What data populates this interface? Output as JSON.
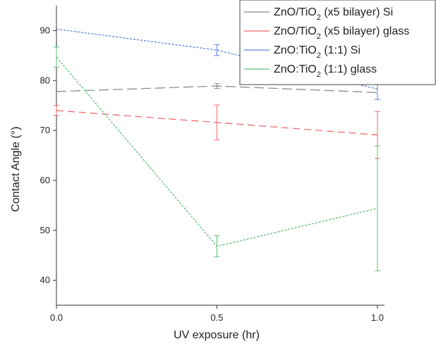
{
  "chart_data": {
    "type": "line",
    "title": "",
    "xlabel": "UV exposure (hr)",
    "ylabel": "Contact Angle (°)",
    "xlim": [
      0.0,
      1.0
    ],
    "ylim": [
      35,
      95
    ],
    "x_ticks": [
      "0.0",
      "0.5",
      "1.0"
    ],
    "y_ticks": [
      "40",
      "50",
      "60",
      "70",
      "80",
      "90"
    ],
    "x_tick_values": [
      0.0,
      0.5,
      1.0
    ],
    "y_tick_values": [
      40,
      50,
      60,
      70,
      80,
      90
    ],
    "grid": false,
    "legend_position": "top-right",
    "x": [
      0.0,
      0.5,
      1.0
    ],
    "series": [
      {
        "name": "ZnO/TiO2 (x5 bilayer) Si",
        "legend_base": "ZnO/TiO",
        "legend_sub": "2",
        "legend_rest": " (x5 bilayer) Si",
        "color": "#8c8c8c",
        "dash": "14,6",
        "values": [
          77.8,
          78.9,
          77.6
        ],
        "errors": [
          0.0,
          0.5,
          0.0
        ]
      },
      {
        "name": "ZnO/TiO2 (x5 bilayer) glass",
        "legend_base": "ZnO/TiO",
        "legend_sub": "2",
        "legend_rest": " (x5 bilayer) glass",
        "color": "#f06a6a",
        "dash": "10,6",
        "values": [
          74.0,
          71.6,
          69.1
        ],
        "errors": [
          1.0,
          3.5,
          4.7
        ]
      },
      {
        "name": "ZnO:TiO2 (1:1) Si",
        "legend_base": "ZnO:TiO",
        "legend_sub": "2",
        "legend_rest": " (1:1) Si",
        "color": "#5b82e0",
        "dash": "3,2",
        "values": [
          90.3,
          86.1,
          78.3
        ],
        "errors": [
          0.0,
          1.1,
          2.1
        ]
      },
      {
        "name": "ZnO:TiO2 (1:1) glass",
        "legend_base": "ZnO:TiO",
        "legend_sub": "2",
        "legend_rest": " (1:1) glass",
        "color": "#5cbf72",
        "dash": "3,2",
        "values": [
          84.7,
          46.8,
          54.4
        ],
        "errors": [
          2.0,
          2.1,
          12.5
        ]
      }
    ]
  }
}
